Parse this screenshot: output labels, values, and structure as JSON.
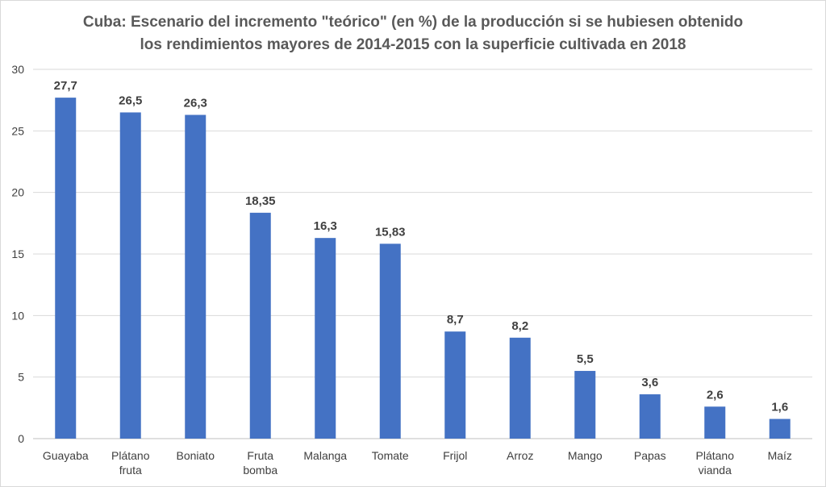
{
  "chart_data": {
    "type": "bar",
    "title": "Cuba: Escenario del incremento \"teórico\" (en %) de la producción si se hubiesen obtenido los rendimientos mayores de 2014-2015 con la superficie cultivada en 2018",
    "title_lines": [
      "Cuba: Escenario del incremento \"teórico\" (en %) de la producción si se hubiesen obtenido",
      "los rendimientos mayores de 2014-2015 con la superficie cultivada en 2018"
    ],
    "categories": [
      [
        "Guayaba"
      ],
      [
        "Plátano",
        "fruta"
      ],
      [
        "Boniato"
      ],
      [
        "Fruta",
        "bomba"
      ],
      [
        "Malanga"
      ],
      [
        "Tomate"
      ],
      [
        "Frijol"
      ],
      [
        "Arroz"
      ],
      [
        "Mango"
      ],
      [
        "Papas"
      ],
      [
        "Plátano",
        "vianda"
      ],
      [
        "Maíz"
      ]
    ],
    "values": [
      27.7,
      26.5,
      26.3,
      18.35,
      16.3,
      15.83,
      8.7,
      8.2,
      5.5,
      3.6,
      2.6,
      1.6
    ],
    "data_labels": [
      "27,7",
      "26,5",
      "26,3",
      "18,35",
      "16,3",
      "15,83",
      "8,7",
      "8,2",
      "5,5",
      "3,6",
      "2,6",
      "1,6"
    ],
    "xlabel": "",
    "ylabel": "",
    "ylim": [
      0,
      30
    ],
    "yticks": [
      0,
      5,
      10,
      15,
      20,
      25,
      30
    ],
    "grid": true,
    "legend": "none",
    "bar_color": "#4472c4"
  }
}
